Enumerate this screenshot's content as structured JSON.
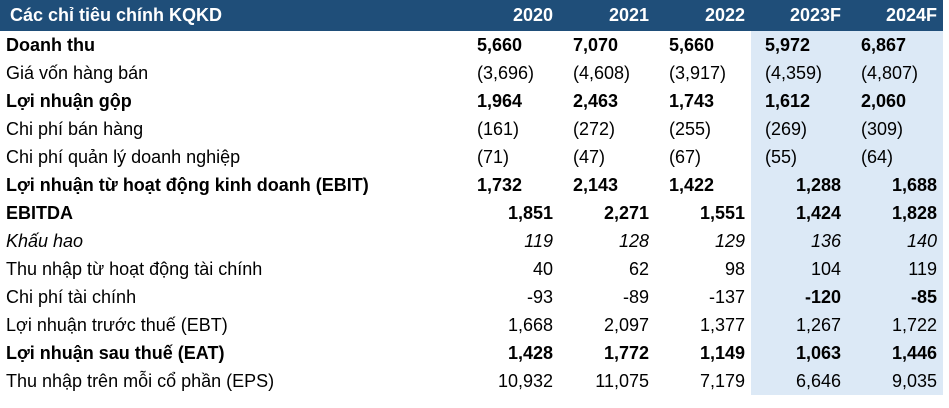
{
  "table": {
    "header": [
      "Các chỉ tiêu chính KQKD",
      "2020",
      "2021",
      "2022",
      "2023F",
      "2024F"
    ],
    "rows": [
      {
        "label": "Doanh thu",
        "values": [
          "5,660",
          "7,070",
          "5,660",
          "5,972",
          "6,867"
        ]
      },
      {
        "label": "Giá vốn hàng bán",
        "values": [
          "(3,696)",
          "(4,608)",
          "(3,917)",
          "(4,359)",
          "(4,807)"
        ]
      },
      {
        "label": "Lợi nhuận gộp",
        "values": [
          "1,964",
          "2,463",
          "1,743",
          "1,612",
          "2,060"
        ]
      },
      {
        "label": "Chi phí bán hàng",
        "values": [
          "(161)",
          "(272)",
          "(255)",
          "(269)",
          "(309)"
        ]
      },
      {
        "label": "Chi phí quản lý doanh nghiệp",
        "values": [
          "(71)",
          "(47)",
          "(67)",
          "(55)",
          "(64)"
        ]
      },
      {
        "label": "Lợi nhuận từ hoạt động kinh doanh (EBIT)",
        "values": [
          "1,732",
          "2,143",
          "1,422",
          "1,288",
          "1,688"
        ]
      },
      {
        "label": "EBITDA",
        "values": [
          "1,851",
          "2,271",
          "1,551",
          "1,424",
          "1,828"
        ]
      },
      {
        "label": "Khấu hao",
        "values": [
          "119",
          "128",
          "129",
          "136",
          "140"
        ]
      },
      {
        "label": "Thu nhập từ hoạt động tài chính",
        "values": [
          "40",
          "62",
          "98",
          "104",
          "119"
        ]
      },
      {
        "label": "Chi phí tài chính",
        "values": [
          "-93",
          "-89",
          "-137",
          "-120",
          "-85"
        ]
      },
      {
        "label": "Lợi nhuận trước thuế (EBT)",
        "values": [
          "1,668",
          "2,097",
          "1,377",
          "1,267",
          "1,722"
        ]
      },
      {
        "label": "Lợi nhuận sau thuế (EAT)",
        "values": [
          "1,428",
          "1,772",
          "1,149",
          "1,063",
          "1,446"
        ]
      },
      {
        "label": "Thu nhập trên mỗi cổ phần (EPS)",
        "values": [
          "10,932",
          "11,075",
          "7,179",
          "6,646",
          "9,035"
        ]
      }
    ]
  },
  "colors": {
    "header_bg": "#1F4E79",
    "header_text": "#FFFFFF",
    "forecast_bg": "#DCE9F6"
  }
}
